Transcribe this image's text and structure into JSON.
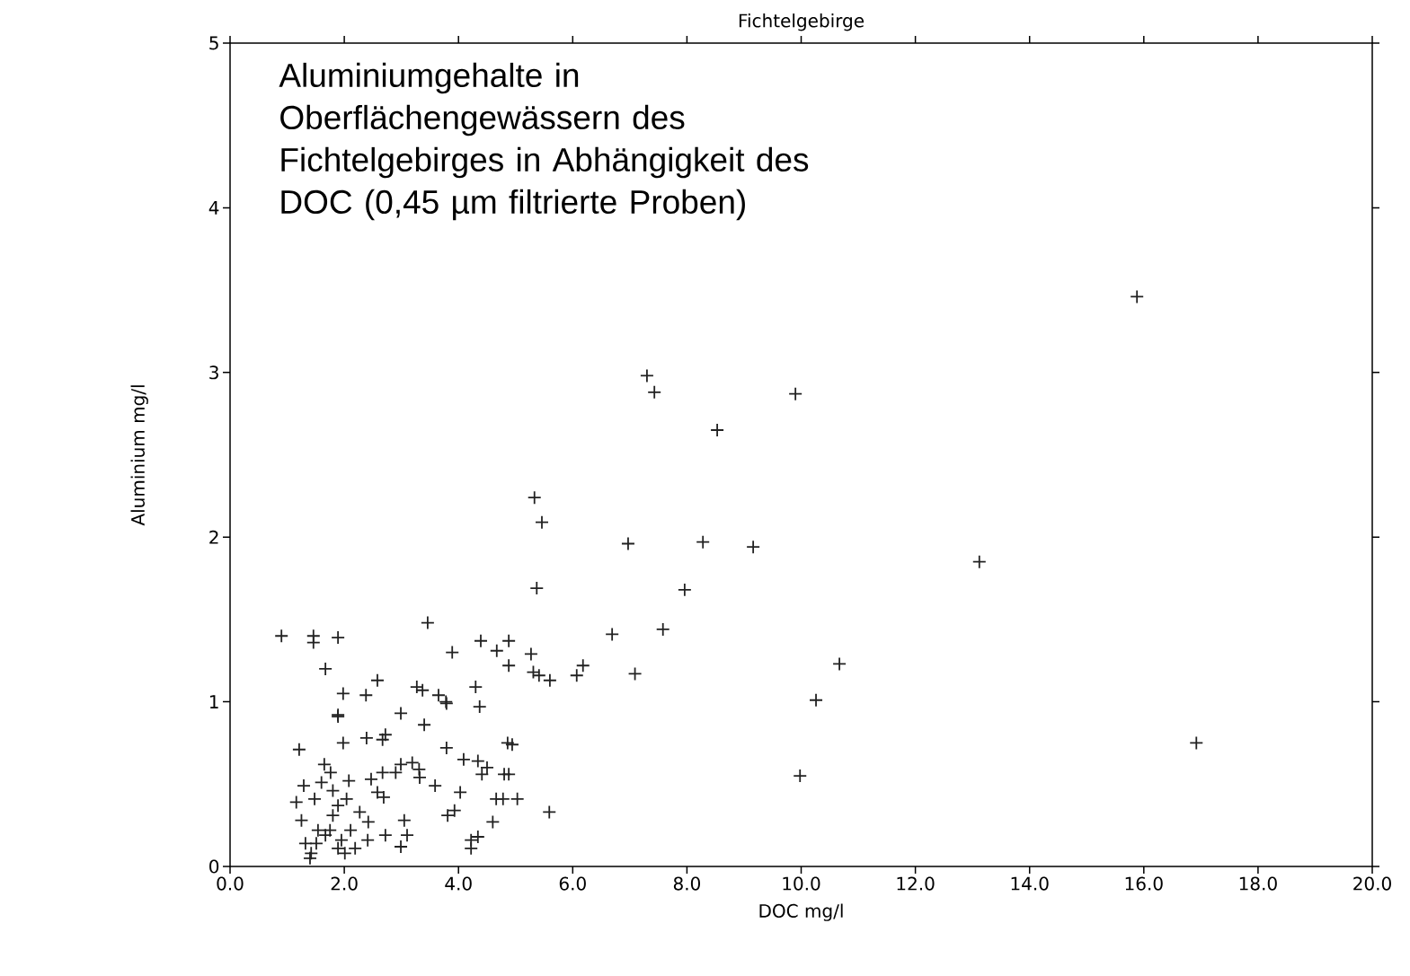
{
  "chart_data": {
    "type": "scatter",
    "title": "Fichtelgebirge",
    "xlabel": "DOC  mg/l",
    "ylabel": "Aluminium  mg/l",
    "annotations": [
      "Aluminiumgehalte in Oberflächengewässern des Fichtelgebirges in Abhängigkeit des DOC (0,45 µm filtrierte Proben)"
    ],
    "xlim": [
      0,
      20
    ],
    "ylim": [
      0,
      5
    ],
    "xticks": [
      {
        "value": 0,
        "label": "0.0"
      },
      {
        "value": 2,
        "label": "2.0"
      },
      {
        "value": 4,
        "label": "4.0"
      },
      {
        "value": 6,
        "label": "6.0"
      },
      {
        "value": 8,
        "label": "8.0"
      },
      {
        "value": 10,
        "label": "10.0"
      },
      {
        "value": 12,
        "label": "12.0"
      },
      {
        "value": 14,
        "label": "14.0"
      },
      {
        "value": 16,
        "label": "16.0"
      },
      {
        "value": 18,
        "label": "18.0"
      },
      {
        "value": 20,
        "label": "20.0"
      }
    ],
    "yticks": [
      0,
      1,
      2,
      3,
      4,
      5
    ],
    "marker": "cross",
    "color": "#222222",
    "x": [
      15.88,
      7.3,
      7.43,
      9.9,
      8.53,
      5.33,
      5.46,
      6.97,
      8.28,
      9.16,
      13.12,
      5.37,
      7.96,
      7.58,
      6.69,
      7.09,
      10.67,
      10.26,
      9.98,
      16.92,
      3.46,
      0.9,
      1.46,
      1.46,
      1.89,
      1.67,
      3.89,
      4.39,
      4.88,
      4.67,
      5.27,
      4.88,
      5.31,
      5.41,
      5.6,
      6.07,
      6.18,
      2.58,
      2.38,
      1.98,
      1.89,
      1.89,
      2.99,
      3.27,
      3.37,
      3.65,
      3.78,
      4.3,
      4.37,
      3.79,
      1.21,
      1.98,
      2.39,
      2.67,
      2.72,
      3.4,
      3.79,
      4.86,
      4.94,
      4.09,
      4.34,
      4.5,
      4.41,
      4.8,
      4.88,
      4.78,
      5.03,
      4.66,
      4.6,
      5.59,
      4.34,
      4.22,
      4.22,
      3.93,
      3.81,
      4.03,
      3.59,
      3.31,
      3.19,
      2.99,
      2.9,
      2.67,
      2.69,
      3.32,
      3.05,
      3.1,
      2.99,
      2.72,
      2.41,
      2.42,
      2.27,
      2.08,
      2.04,
      1.76,
      1.65,
      1.6,
      1.48,
      1.29,
      1.16,
      1.25,
      1.32,
      1.42,
      1.51,
      1.67,
      1.8,
      1.89,
      1.95,
      2.11,
      2.19,
      1.89,
      1.75,
      1.54,
      1.4,
      2.01,
      2.58,
      2.47,
      1.8
    ],
    "values": [
      3.46,
      2.98,
      2.88,
      2.87,
      2.65,
      2.24,
      2.09,
      1.96,
      1.97,
      1.94,
      1.85,
      1.69,
      1.68,
      1.44,
      1.41,
      1.17,
      1.23,
      1.01,
      0.55,
      0.75,
      1.48,
      1.4,
      1.4,
      1.36,
      1.39,
      1.2,
      1.3,
      1.37,
      1.37,
      1.31,
      1.29,
      1.22,
      1.18,
      1.16,
      1.13,
      1.16,
      1.22,
      1.13,
      1.04,
      1.05,
      0.92,
      0.91,
      0.93,
      1.09,
      1.07,
      1.04,
      1.0,
      1.09,
      0.97,
      0.99,
      0.71,
      0.75,
      0.78,
      0.77,
      0.8,
      0.86,
      0.72,
      0.75,
      0.74,
      0.65,
      0.64,
      0.6,
      0.56,
      0.56,
      0.56,
      0.41,
      0.41,
      0.41,
      0.27,
      0.33,
      0.18,
      0.11,
      0.16,
      0.34,
      0.31,
      0.45,
      0.49,
      0.59,
      0.63,
      0.62,
      0.57,
      0.57,
      0.42,
      0.54,
      0.28,
      0.19,
      0.12,
      0.19,
      0.16,
      0.27,
      0.33,
      0.52,
      0.41,
      0.57,
      0.62,
      0.51,
      0.41,
      0.49,
      0.39,
      0.28,
      0.14,
      0.08,
      0.14,
      0.19,
      0.31,
      0.37,
      0.16,
      0.22,
      0.11,
      0.11,
      0.22,
      0.22,
      0.05,
      0.08,
      0.45,
      0.53,
      0.46
    ]
  }
}
